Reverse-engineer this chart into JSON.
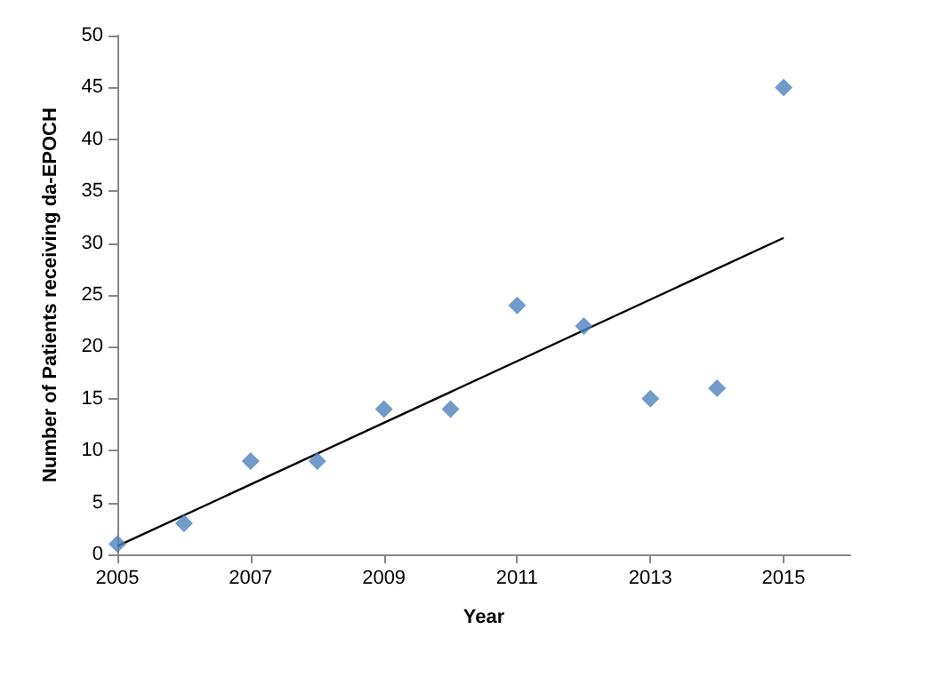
{
  "chart_data": {
    "type": "scatter",
    "xlabel": "Year",
    "ylabel": "Number of Patients receiving da-EPOCH",
    "xlim": [
      2005,
      2016
    ],
    "xticks": [
      2005,
      2007,
      2009,
      2011,
      2013,
      2015
    ],
    "ylim": [
      0,
      50
    ],
    "yticks": [
      0,
      5,
      10,
      15,
      20,
      25,
      30,
      35,
      40,
      45,
      50
    ],
    "grid": false,
    "marker": "diamond",
    "series": [
      {
        "color": "#4f81bd",
        "x": [
          2005,
          2006,
          2007,
          2008,
          2009,
          2010,
          2011,
          2012,
          2013,
          2014,
          2015
        ],
        "values": [
          1,
          3,
          9,
          9,
          14,
          14,
          24,
          22,
          15,
          16,
          45
        ]
      },
      {
        "type": "line",
        "color": "#000000",
        "marker": "none",
        "line_style": "solid",
        "x": [
          2005,
          2015
        ],
        "values": [
          0.8,
          30.5
        ]
      }
    ]
  }
}
